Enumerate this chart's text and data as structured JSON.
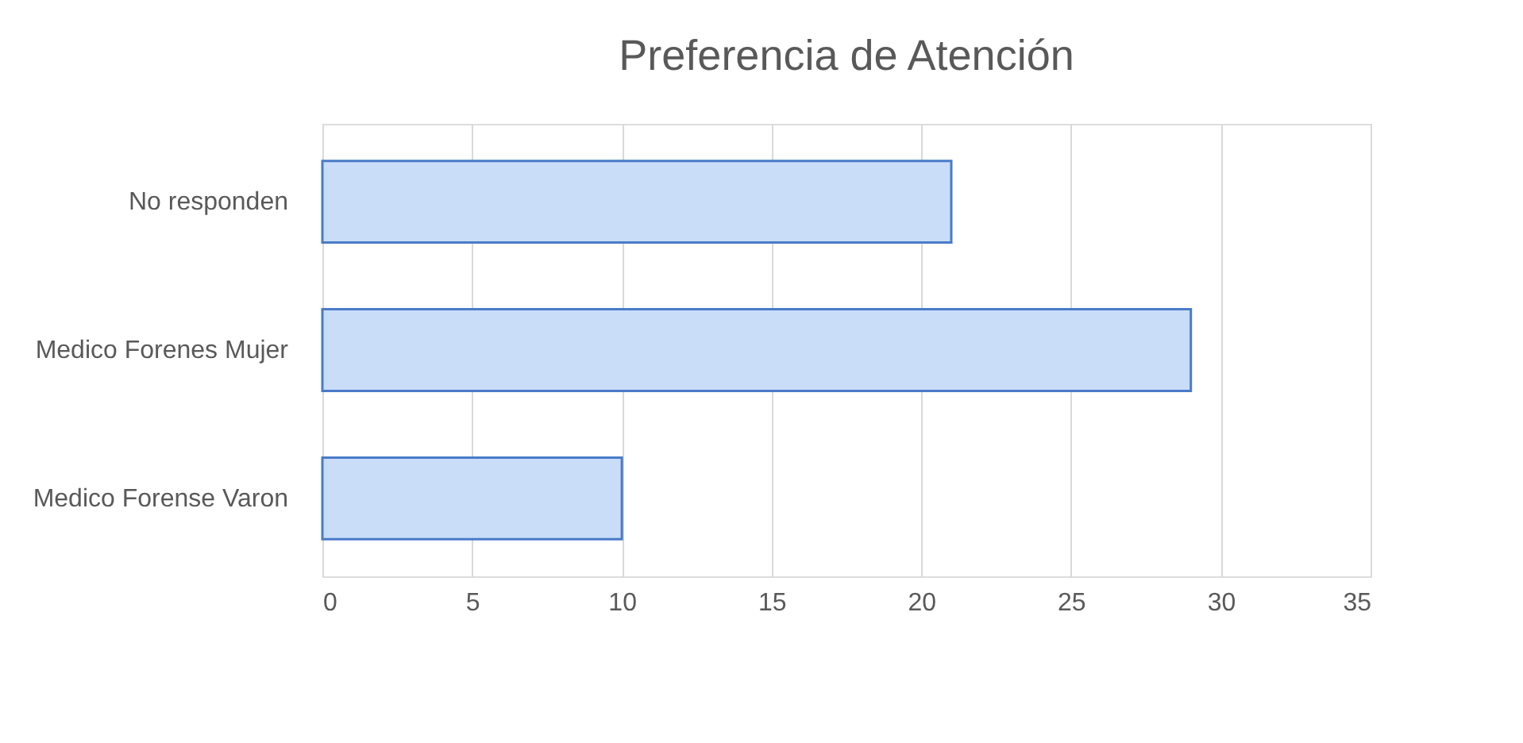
{
  "chart_data": {
    "type": "bar",
    "orientation": "horizontal",
    "title": "Preferencia de Atención",
    "categories": [
      "No responden",
      "Medico Forenes Mujer",
      "Medico Forense Varon"
    ],
    "values": [
      21,
      29,
      10
    ],
    "color": "#c9dcf8",
    "xlim": [
      0,
      35
    ],
    "xticks": [
      0,
      5,
      10,
      15,
      20,
      25,
      30,
      35
    ],
    "grid": "x"
  }
}
